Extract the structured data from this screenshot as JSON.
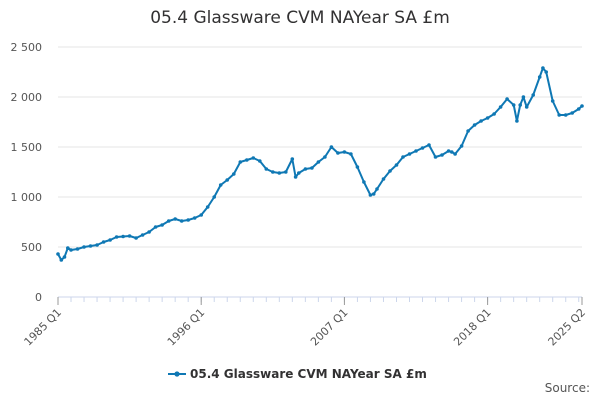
{
  "chart_data": {
    "type": "line",
    "title": "05.4 Glassware CVM NAYear SA £m",
    "xlabel": "",
    "ylabel": "",
    "ylim": [
      0,
      2500
    ],
    "yticks": [
      0,
      500,
      1000,
      1500,
      2000,
      2500
    ],
    "ytick_labels": [
      "0",
      "500",
      "1 000",
      "1 500",
      "2 000",
      "2 500"
    ],
    "xtick_labels": [
      "1985 Q1",
      "1996 Q1",
      "2007 Q1",
      "2018 Q1",
      "2025 Q2"
    ],
    "xtick_values": [
      1985.0,
      1996.0,
      2007.0,
      2018.0,
      2025.25
    ],
    "xlim": [
      1985.0,
      2025.25
    ],
    "grid": true,
    "legend_position": "bottom",
    "series": [
      {
        "name": "05.4 Glassware CVM NAYear SA £m",
        "color": "#0f78b4",
        "x": [
          1985.0,
          1985.25,
          1985.5,
          1985.75,
          1986.0,
          1986.5,
          1987.0,
          1987.5,
          1988.0,
          1988.5,
          1989.0,
          1989.5,
          1990.0,
          1990.5,
          1991.0,
          1991.5,
          1992.0,
          1992.5,
          1993.0,
          1993.5,
          1994.0,
          1994.5,
          1995.0,
          1995.5,
          1996.0,
          1996.5,
          1997.0,
          1997.5,
          1998.0,
          1998.5,
          1999.0,
          1999.5,
          2000.0,
          2000.5,
          2001.0,
          2001.5,
          2002.0,
          2002.5,
          2003.0,
          2003.25,
          2003.5,
          2004.0,
          2004.5,
          2005.0,
          2005.5,
          2006.0,
          2006.5,
          2007.0,
          2007.5,
          2008.0,
          2008.5,
          2009.0,
          2009.25,
          2009.5,
          2010.0,
          2010.5,
          2011.0,
          2011.5,
          2012.0,
          2012.5,
          2013.0,
          2013.5,
          2014.0,
          2014.5,
          2015.0,
          2015.25,
          2015.5,
          2016.0,
          2016.5,
          2017.0,
          2017.5,
          2018.0,
          2018.5,
          2019.0,
          2019.5,
          2020.0,
          2020.25,
          2020.5,
          2020.75,
          2021.0,
          2021.5,
          2022.0,
          2022.25,
          2022.5,
          2023.0,
          2023.5,
          2024.0,
          2024.5,
          2025.0,
          2025.25
        ],
        "values": [
          430,
          370,
          400,
          490,
          470,
          480,
          500,
          510,
          520,
          550,
          570,
          600,
          605,
          610,
          590,
          620,
          650,
          700,
          720,
          760,
          780,
          760,
          770,
          790,
          820,
          900,
          1000,
          1120,
          1170,
          1230,
          1350,
          1370,
          1390,
          1360,
          1280,
          1250,
          1240,
          1250,
          1380,
          1200,
          1240,
          1280,
          1290,
          1350,
          1400,
          1500,
          1440,
          1450,
          1430,
          1300,
          1150,
          1020,
          1030,
          1080,
          1180,
          1260,
          1320,
          1400,
          1430,
          1460,
          1490,
          1520,
          1400,
          1420,
          1460,
          1450,
          1430,
          1510,
          1660,
          1720,
          1760,
          1790,
          1830,
          1900,
          1980,
          1920,
          1760,
          1920,
          2000,
          1900,
          2020,
          2200,
          2290,
          2250,
          1960,
          1820,
          1820,
          1840,
          1880,
          1910
        ],
        "raw_note": ""
      }
    ]
  },
  "legend": {
    "label": "05.4 Glassware CVM NAYear SA £m"
  },
  "footer": {
    "source_label": "Source:"
  },
  "colors": {
    "line": "#0f78b4",
    "grid": "#e6e6e6",
    "axis": "#ccd6eb",
    "text": "#555555"
  }
}
